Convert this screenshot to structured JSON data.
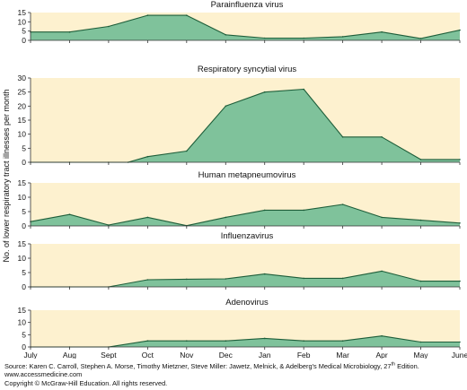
{
  "chart_data": {
    "type": "area",
    "months": [
      "July",
      "Aug",
      "Sept",
      "Oct",
      "Nov",
      "Dec",
      "Jan",
      "Feb",
      "Mar",
      "Apr",
      "May",
      "June"
    ],
    "ylabel": "No. of lower respiratory tract illnesses per month",
    "colors": {
      "fill": "#7fc29b",
      "line": "#1e5e3a",
      "panel_bg": "#fdf1cf",
      "axis": "#333333"
    },
    "panels": [
      {
        "title": "Parainfluenza virus",
        "yticks": [
          0,
          5,
          10,
          15
        ],
        "ylim": [
          0,
          15
        ],
        "x": [
          0,
          1,
          2,
          3,
          4,
          5,
          6,
          7,
          8,
          9,
          10,
          11
        ],
        "values": [
          4.5,
          4.5,
          7.5,
          13.5,
          13.5,
          3,
          1.2,
          1.2,
          2,
          4.5,
          1,
          5.5
        ]
      },
      {
        "title": "Respiratory syncytial virus",
        "yticks": [
          0,
          5,
          10,
          15,
          20,
          25,
          30
        ],
        "ylim": [
          0,
          30
        ],
        "x": [
          0,
          1,
          2,
          2.5,
          3,
          4,
          5,
          6,
          7,
          8,
          9,
          10,
          11
        ],
        "values": [
          0,
          0,
          0,
          0,
          2,
          4,
          20,
          25,
          26,
          9,
          9,
          1,
          1
        ]
      },
      {
        "title": "Human metapneumovirus",
        "yticks": [
          0,
          5,
          10,
          15
        ],
        "ylim": [
          0,
          15
        ],
        "x": [
          0,
          1,
          2,
          3,
          4,
          5,
          6,
          7,
          8,
          9,
          10,
          11
        ],
        "values": [
          1.5,
          4,
          0.3,
          3,
          0.1,
          3,
          5.5,
          5.5,
          7.5,
          3,
          2,
          1
        ]
      },
      {
        "title": "Influenzavirus",
        "yticks": [
          0,
          5,
          10,
          15
        ],
        "ylim": [
          0,
          15
        ],
        "x": [
          0,
          1,
          2,
          3,
          4,
          5,
          6,
          7,
          8,
          9,
          10,
          11
        ],
        "values": [
          0,
          0,
          0,
          2.5,
          2.7,
          2.8,
          4.5,
          3,
          3,
          5.5,
          2,
          2
        ]
      },
      {
        "title": "Adenovirus",
        "yticks": [
          0,
          5,
          10,
          15
        ],
        "ylim": [
          0,
          15
        ],
        "x": [
          0,
          1,
          2,
          3,
          4,
          5,
          6,
          7,
          8,
          9,
          10,
          11
        ],
        "values": [
          0,
          0,
          0,
          2.5,
          2.5,
          2.5,
          3.5,
          2.5,
          2.5,
          4.5,
          2,
          2
        ]
      }
    ]
  },
  "footer": {
    "source_prefix": "Source: Karen C. Carroll, Stephen A. Morse, Timothy Mietzner, Steve Miller: Jawetz, Melnick, & Adelberg's Medical Microbiology, 27",
    "source_sup": "th",
    "source_suffix": " Edition.",
    "website": "www.accessmedicine.com",
    "copyright": "Copyright © McGraw-Hill Education.  All rights reserved."
  }
}
